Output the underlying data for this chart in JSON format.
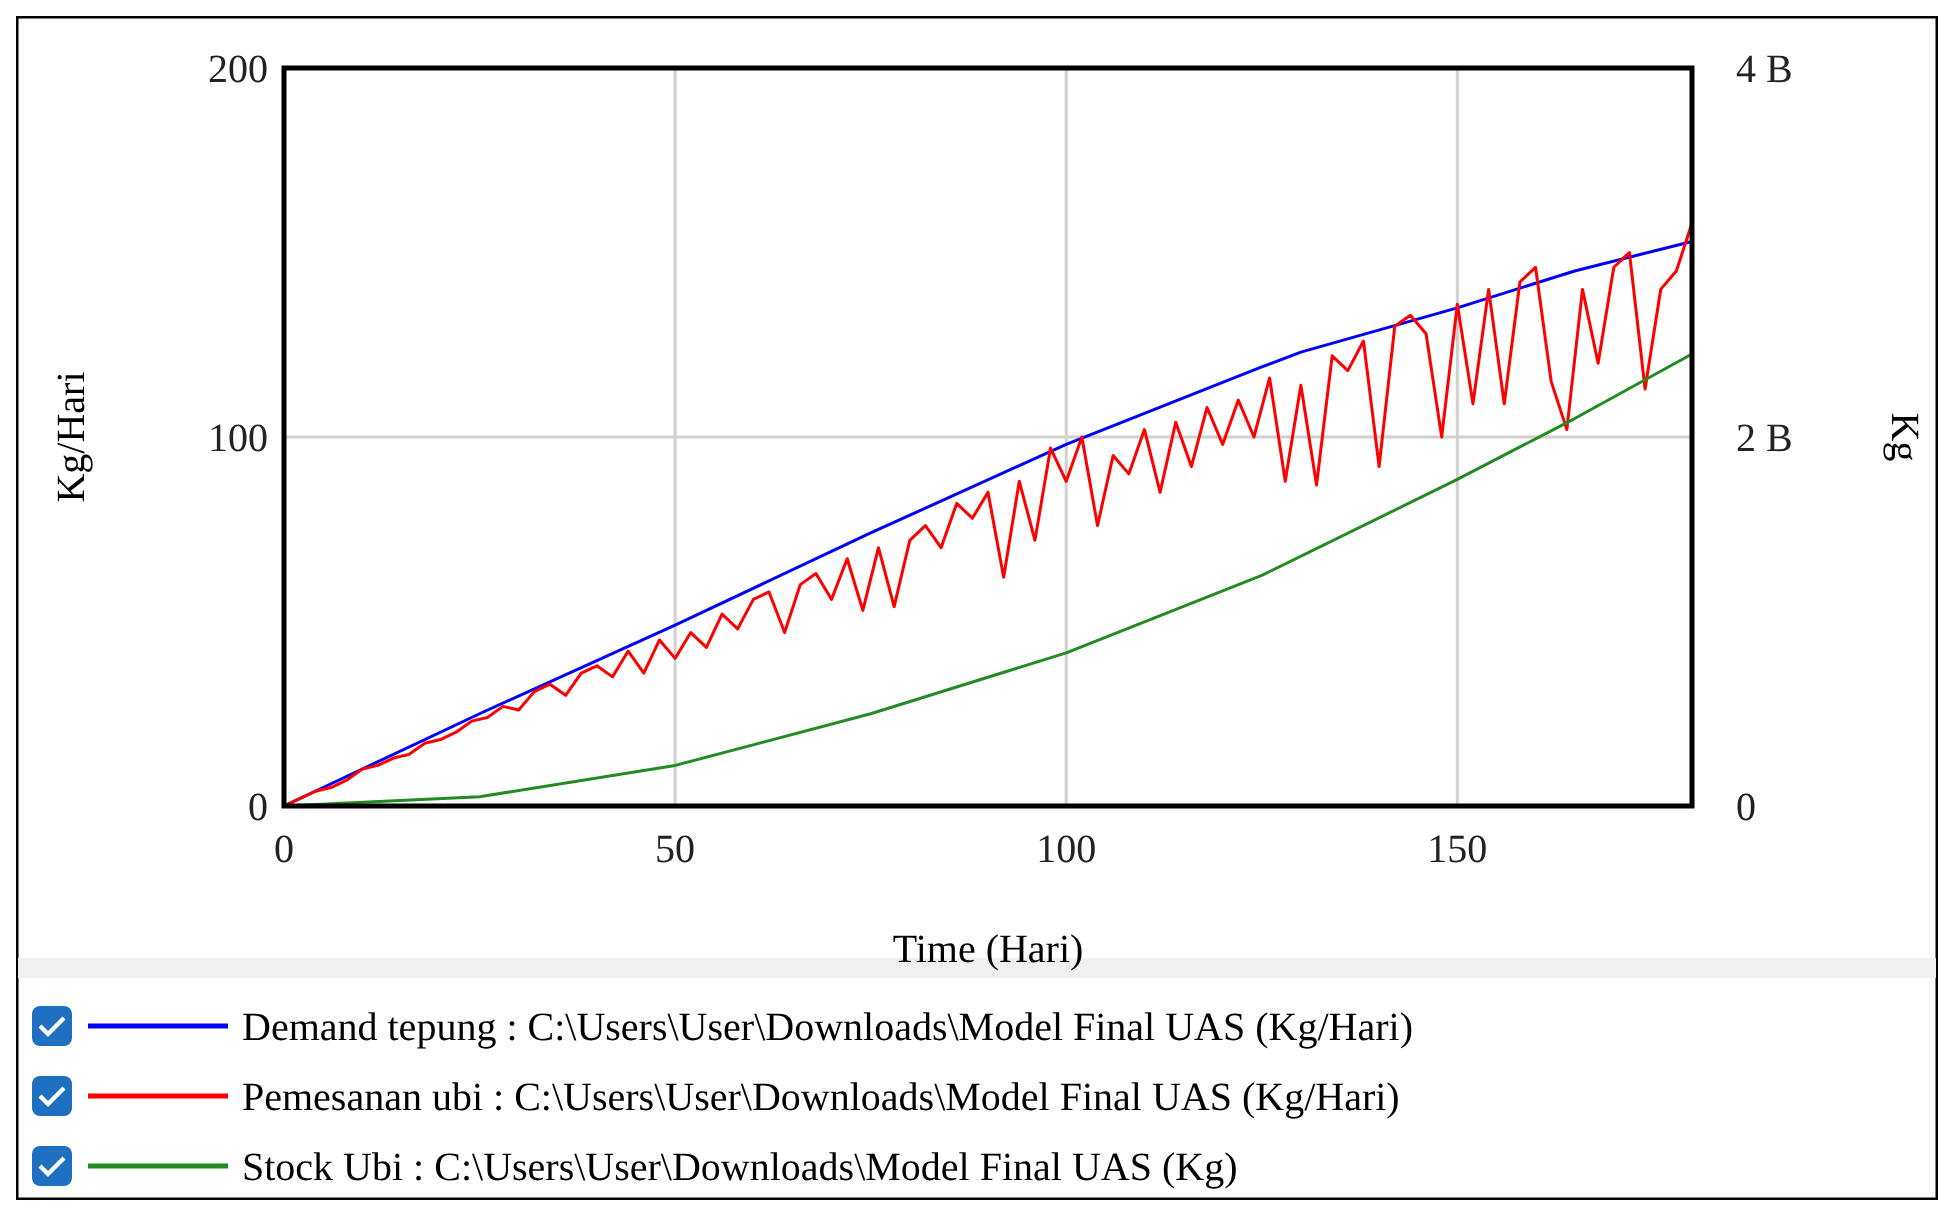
{
  "chart_data": {
    "type": "line",
    "xlabel": "Time (Hari)",
    "ylabel": "Kg/Hari",
    "y2label": "Kg",
    "xlim": [
      0,
      180
    ],
    "xticks": [
      0,
      50,
      100,
      150
    ],
    "ylim": [
      0,
      200
    ],
    "yticks": [
      0,
      100,
      200
    ],
    "y2lim": [
      0,
      4000000000
    ],
    "y2ticks": [
      {
        "value": 0,
        "label": "0"
      },
      {
        "value": 2000000000,
        "label": "2 B"
      },
      {
        "value": 4000000000,
        "label": "4 B"
      }
    ],
    "grid": true,
    "legend": "bottom",
    "marker": "none",
    "line_style": "solid",
    "series": [
      {
        "name": "Demand tepung : C:\\Users\\User\\Downloads\\Model Final UAS (Kg/Hari)",
        "color": "#0000ff",
        "x": [
          0,
          25,
          50,
          75,
          100,
          125,
          130,
          150,
          165,
          180
        ],
        "values": [
          0,
          25,
          49,
          74,
          98,
          119,
          123,
          135,
          145,
          153
        ]
      },
      {
        "name": "Pemesanan ubi : C:\\Users\\User\\Downloads\\Model Final UAS (Kg/Hari)",
        "color": "#ff0000",
        "x": [
          0,
          2,
          4,
          6,
          8,
          10,
          12,
          14,
          16,
          18,
          20,
          22,
          24,
          26,
          28,
          30,
          32,
          34,
          36,
          38,
          40,
          42,
          44,
          46,
          48,
          50,
          52,
          54,
          56,
          58,
          60,
          62,
          64,
          66,
          68,
          70,
          72,
          74,
          76,
          78,
          80,
          82,
          84,
          86,
          88,
          90,
          92,
          94,
          96,
          98,
          100,
          102,
          104,
          106,
          108,
          110,
          112,
          114,
          116,
          118,
          120,
          122,
          124,
          126,
          128,
          130,
          132,
          134,
          136,
          138,
          140,
          142,
          144,
          146,
          148,
          150,
          152,
          154,
          156,
          158,
          160,
          162,
          164,
          166,
          168,
          170,
          172,
          174,
          176,
          178,
          180
        ],
        "values": [
          0,
          2,
          4,
          5,
          7,
          10,
          11,
          13,
          14,
          17,
          18,
          20,
          23,
          24,
          27,
          26,
          31,
          33,
          30,
          36,
          38,
          35,
          42,
          36,
          45,
          40,
          47,
          43,
          52,
          48,
          56,
          58,
          47,
          60,
          63,
          56,
          67,
          53,
          70,
          54,
          72,
          76,
          70,
          82,
          78,
          85,
          62,
          88,
          72,
          97,
          88,
          100,
          76,
          95,
          90,
          102,
          85,
          104,
          92,
          108,
          98,
          110,
          100,
          116,
          88,
          114,
          87,
          122,
          118,
          126,
          92,
          130,
          133,
          128,
          100,
          136,
          109,
          140,
          109,
          142,
          146,
          115,
          102,
          140,
          120,
          146,
          150,
          113,
          140,
          145,
          158
        ]
      },
      {
        "name": "Stock Ubi : C:\\Users\\User\\Downloads\\Model Final UAS (Kg)",
        "color": "#228b22",
        "axis": "y2",
        "x": [
          0,
          25,
          50,
          75,
          100,
          125,
          150,
          165,
          180
        ],
        "values": [
          0,
          50000000,
          220000000,
          500000000,
          830000000,
          1250000000,
          1770000000,
          2100000000,
          2450000000
        ]
      }
    ]
  }
}
